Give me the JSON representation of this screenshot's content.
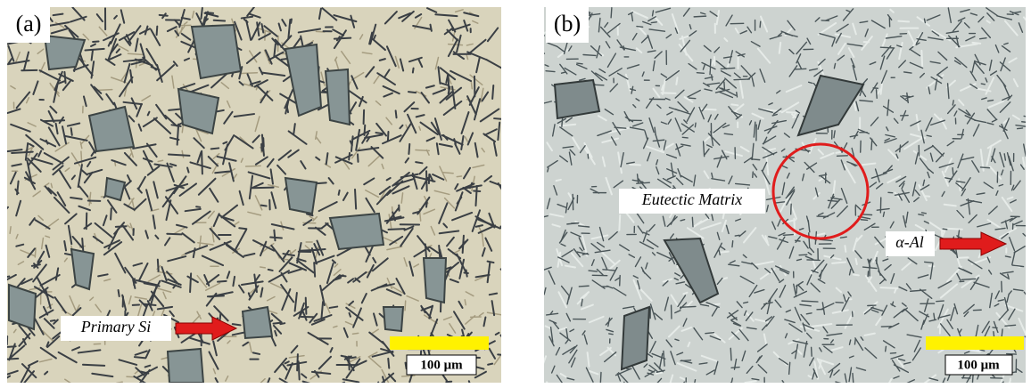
{
  "panels": [
    {
      "label": "(a)",
      "annotation": "Primary Si",
      "scale_bar": "100 μm"
    },
    {
      "label": "(b)",
      "annotations": [
        "Eutectic Matrix",
        "α-Al"
      ],
      "scale_bar": "100 μm"
    }
  ]
}
